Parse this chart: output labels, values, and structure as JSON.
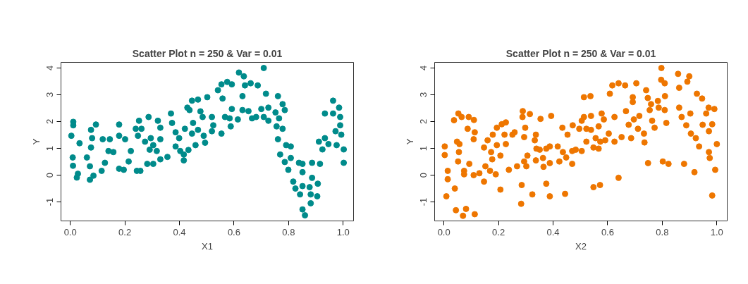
{
  "chart_data": [
    {
      "type": "scatter",
      "title": "Scatter Plot n = 250 & Var = 0.01",
      "xlabel": "X1",
      "ylabel": "Y",
      "marker": "circle",
      "xlim": [
        -0.034,
        1.038
      ],
      "ylim": [
        -1.71,
        4.21
      ],
      "xticks": [
        {
          "value": 0,
          "label": "0.0"
        },
        {
          "value": 0.2,
          "label": "0.2"
        },
        {
          "value": 0.4,
          "label": "0.4"
        },
        {
          "value": 0.6,
          "label": "0.6"
        },
        {
          "value": 0.8,
          "label": "0.8"
        },
        {
          "value": 1,
          "label": "1.0"
        }
      ],
      "yticks": [
        -1,
        0,
        1,
        2,
        3,
        4
      ],
      "series": [
        {
          "color": "#008b8b",
          "x": [
            0.011,
            0.011,
            0.004,
            0.009,
            0.01,
            0.028,
            0.024,
            0.034,
            0.076,
            0.08,
            0.076,
            0.061,
            0.072,
            0.072,
            0.085,
            0.094,
            0.119,
            0.145,
            0.14,
            0.115,
            0.127,
            0.158,
            0.179,
            0.179,
            0.201,
            0.179,
            0.196,
            0.222,
            0.214,
            0.24,
            0.248,
            0.252,
            0.261,
            0.244,
            0.257,
            0.274,
            0.287,
            0.295,
            0.282,
            0.304,
            0.291,
            0.304,
            0.317,
            0.321,
            0.33,
            0.33,
            0.33,
            0.356,
            0.369,
            0.373,
            0.386,
            0.399,
            0.386,
            0.403,
            0.416,
            0.416,
            0.42,
            0.429,
            0.437,
            0.446,
            0.468,
            0.45,
            0.446,
            0.468,
            0.459,
            0.433,
            0.477,
            0.485,
            0.489,
            0.502,
            0.494,
            0.519,
            0.524,
            0.519,
            0.541,
            0.554,
            0.558,
            0.554,
            0.567,
            0.584,
            0.575,
            0.592,
            0.592,
            0.588,
            0.614,
            0.618,
            0.636,
            0.631,
            0.64,
            0.631,
            0.661,
            0.653,
            0.666,
            0.687,
            0.681,
            0.7,
            0.709,
            0.709,
            0.717,
            0.726,
            0.726,
            0.752,
            0.756,
            0.761,
            0.778,
            0.765,
            0.778,
            0.786,
            0.761,
            0.791,
            0.808,
            0.769,
            0.786,
            0.808,
            0.799,
            0.817,
            0.825,
            0.838,
            0.851,
            0.851,
            0.842,
            0.851,
            0.851,
            0.86,
            0.877,
            0.881,
            0.886,
            0.886,
            0.881,
            0.907,
            0.905,
            0.915,
            0.911,
            0.924,
            0.933,
            0.933,
            0.946,
            0.963,
            0.963,
            0.972,
            0.976,
            0.985,
            0.989,
            0.989,
            0.993,
            1.002,
            1.002
          ],
          "values": [
            1.99,
            1.86,
            1.47,
            0.66,
            0.35,
            0.05,
            -0.09,
            1.19,
            1.69,
            1.38,
            1.03,
            0.66,
            0.33,
            -0.17,
            -0.02,
            1.89,
            1.34,
            1.34,
            0.9,
            0.16,
            0.46,
            0.86,
            1.89,
            1.47,
            1.34,
            0.24,
            0.2,
            0.9,
            0.51,
            1.73,
            1.47,
            2.03,
            1.73,
            0.16,
            0.16,
            1.25,
            2.17,
            1.38,
            0.42,
            0.42,
            0.95,
            1.12,
            0.9,
            2.03,
            1.77,
            1.34,
            0.59,
            0.68,
            2.3,
            1.95,
            1.6,
            1.38,
            1.07,
            0.9,
            0.77,
            0.55,
            1.73,
            2.52,
            2.43,
            2.78,
            2.82,
            1.95,
            1.55,
            1.69,
            1.12,
            0.94,
            2.38,
            2.17,
            1.47,
            2.91,
            1.21,
            2.17,
            1.86,
            1.64,
            3.17,
            3.39,
            2.86,
            1.55,
            2.17,
            2.12,
            3.48,
            3.39,
            2.47,
            1.82,
            2.08,
            3.83,
            3.69,
            2.95,
            3.35,
            2.43,
            3.43,
            2.39,
            2.12,
            3.35,
            2.17,
            2.47,
            4.0,
            2.17,
            3.04,
            2.52,
            2.03,
            2.34,
            1.82,
            2.95,
            2.65,
            2.12,
            1.73,
            2.43,
            1.34,
            1.12,
            1.07,
            0.77,
            0.49,
            0.64,
            0.2,
            -0.24,
            -0.5,
            0.46,
            0.42,
            0.11,
            -0.72,
            -0.41,
            -1.28,
            -1.5,
            -0.45,
            -0.72,
            -0.1,
            0.46,
            -1.05,
            -0.32,
            -0.79,
            0.42,
            1.25,
            0.96,
            2.3,
            1.38,
            1.16,
            2.78,
            2.3,
            1.64,
            1.12,
            2.52,
            2.17,
            1.86,
            1.51,
            0.96,
            0.46
          ]
        }
      ]
    },
    {
      "type": "scatter",
      "title": "Scatter Plot n = 250 & Var = 0.01",
      "xlabel": "X2",
      "ylabel": "Y",
      "marker": "circle",
      "xlim": [
        -0.034,
        1.038
      ],
      "ylim": [
        -1.71,
        4.21
      ],
      "xticks": [
        {
          "value": 0,
          "label": "0.0"
        },
        {
          "value": 0.2,
          "label": "0.2"
        },
        {
          "value": 0.4,
          "label": "0.4"
        },
        {
          "value": 0.6,
          "label": "0.6"
        },
        {
          "value": 0.8,
          "label": "0.8"
        },
        {
          "value": 1,
          "label": "1.0"
        }
      ],
      "yticks": [
        -1,
        0,
        1,
        2,
        3,
        4
      ],
      "series": [
        {
          "color": "#ee7600",
          "x": [
            0.003,
            0.003,
            0.014,
            0.014,
            0.009,
            0.037,
            0.04,
            0.044,
            0.07,
            0.081,
            0.113,
            0.053,
            0.065,
            0.048,
            0.057,
            0.055,
            0.052,
            0.074,
            0.074,
            0.087,
            0.091,
            0.11,
            0.109,
            0.113,
            0.093,
            0.109,
            0.13,
            0.147,
            0.147,
            0.152,
            0.16,
            0.173,
            0.177,
            0.169,
            0.179,
            0.19,
            0.194,
            0.194,
            0.207,
            0.207,
            0.212,
            0.227,
            0.222,
            0.227,
            0.238,
            0.251,
            0.259,
            0.268,
            0.285,
            0.283,
            0.289,
            0.288,
            0.294,
            0.298,
            0.294,
            0.302,
            0.306,
            0.315,
            0.324,
            0.333,
            0.337,
            0.339,
            0.351,
            0.337,
            0.363,
            0.365,
            0.354,
            0.375,
            0.375,
            0.388,
            0.388,
            0.388,
            0.393,
            0.417,
            0.423,
            0.434,
            0.436,
            0.444,
            0.448,
            0.453,
            0.47,
            0.472,
            0.47,
            0.483,
            0.496,
            0.505,
            0.505,
            0.513,
            0.513,
            0.522,
            0.522,
            0.537,
            0.539,
            0.539,
            0.548,
            0.548,
            0.556,
            0.567,
            0.572,
            0.567,
            0.578,
            0.586,
            0.573,
            0.591,
            0.604,
            0.608,
            0.617,
            0.625,
            0.625,
            0.64,
            0.64,
            0.651,
            0.664,
            0.667,
            0.677,
            0.686,
            0.692,
            0.692,
            0.696,
            0.705,
            0.711,
            0.716,
            0.733,
            0.735,
            0.741,
            0.747,
            0.748,
            0.754,
            0.759,
            0.763,
            0.772,
            0.784,
            0.787,
            0.796,
            0.797,
            0.802,
            0.809,
            0.809,
            0.81,
            0.815,
            0.823,
            0.858,
            0.862,
            0.862,
            0.871,
            0.88,
            0.888,
            0.892,
            0.899,
            0.903,
            0.905,
            0.918,
            0.923,
            0.927,
            0.935,
            0.946,
            0.948,
            0.961,
            0.97,
            0.971,
            0.971,
            0.974,
            0.983,
            0.983,
            0.991,
            0.994,
            1.0
          ],
          "values": [
            1.07,
            0.75,
            0.16,
            -0.15,
            -0.79,
            2.05,
            -0.5,
            -1.31,
            -1.52,
            -1.26,
            -1.46,
            2.3,
            2.17,
            1.25,
            1.16,
            0.86,
            0.51,
            0.16,
            0.03,
            1.73,
            2.17,
            2.06,
            1.34,
            1.6,
            0.42,
            0.0,
            0.07,
            -0.24,
            1.03,
            0.33,
            1.3,
            0.86,
            0.59,
            0.16,
            1.51,
            0.03,
            1.77,
            1.12,
            -0.54,
            0.73,
            1.9,
            1.97,
            1.51,
            1.16,
            0.2,
            1.51,
            1.6,
            0.33,
            -0.37,
            -1.07,
            2.39,
            2.17,
            1.42,
            1.77,
            0.51,
            0.33,
            0.73,
            2.28,
            -0.72,
            1.3,
            1.51,
            0.99,
            0.95,
            0.55,
            0.64,
            0.31,
            2.1,
            -0.32,
            0.99,
            1.07,
            0.45,
            -0.79,
            2.21,
            1.07,
            0.51,
            1.77,
            0.86,
            -0.7,
            0.66,
            1.51,
            0.42,
            1.86,
            0.9,
            0.95,
            1.73,
            0.9,
            2.03,
            2.17,
            2.91,
            1.73,
            1.25,
            2.95,
            1.69,
            2.21,
            1.03,
            -0.45,
            1.38,
            0.99,
            -0.37,
            1.82,
            2.3,
            2.08,
            1.25,
            1.3,
            1.55,
            3.04,
            3.35,
            1.25,
            2.17,
            3.43,
            -0.1,
            1.42,
            3.35,
            2.39,
            1.88,
            1.38,
            2.91,
            2.73,
            2.08,
            3.43,
            1.73,
            2.21,
            1.55,
            1.22,
            3.17,
            2.88,
            0.45,
            2.43,
            2.65,
            2.03,
            1.77,
            2.77,
            2.52,
            3.56,
            4.0,
            0.51,
            3.43,
            2.43,
            2.95,
            1.95,
            0.42,
            3.78,
            3.26,
            2.52,
            2.17,
            0.42,
            1.86,
            3.49,
            3.69,
            2.3,
            1.55,
            0.11,
            1.38,
            3.04,
            1.07,
            2.86,
            1.88,
            2.3,
            2.52,
            1.64,
            0.86,
            0.64,
            -0.76,
            1.9,
            2.47,
            0.2,
            1.16
          ]
        }
      ]
    }
  ]
}
